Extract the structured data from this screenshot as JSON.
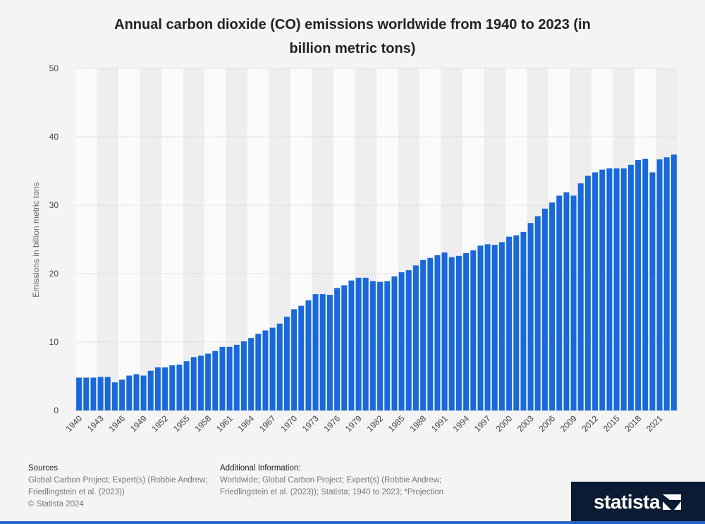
{
  "title_line1": "Annual carbon dioxide (CO) emissions worldwide from 1940 to 2023 (in",
  "title_line2": "billion metric tons)",
  "sources": {
    "heading": "Sources",
    "line1": "Global Carbon Project; Expert(s) (Robbie Andrew;",
    "line2": "Friedlingstein et al. (2023))",
    "line3": "© Statista 2024"
  },
  "additional_info": {
    "heading": "Additional Information:",
    "line1": "Worldwide; Global Carbon Project; Expert(s) (Robbie Andrew;",
    "line2": "Friedlingstein et al. (2023)); Statista; 1940 to 2023; *Projection"
  },
  "brand": {
    "name": "statista",
    "color": "#0b1b33"
  },
  "chart_data": {
    "type": "bar",
    "title": "Annual carbon dioxide (CO) emissions worldwide from 1940 to 2023 (in billion metric tons)",
    "xlabel": "",
    "ylabel": "Emissions in billion metric tons",
    "ylim": [
      0,
      50
    ],
    "yticks": [
      0,
      10,
      20,
      30,
      40,
      50
    ],
    "grid": true,
    "bar_color": "#1668e3",
    "x_tick_labels": [
      "1940",
      "1943",
      "1946",
      "1949",
      "1952",
      "1955",
      "1958",
      "1961",
      "1964",
      "1967",
      "1970",
      "1973",
      "1976",
      "1979",
      "1982",
      "1985",
      "1988",
      "1991",
      "1994",
      "1997",
      "2000",
      "2003",
      "2006",
      "2009",
      "2012",
      "2015",
      "2018",
      "2021"
    ],
    "categories": [
      "1940",
      "1941",
      "1942",
      "1943",
      "1944",
      "1945",
      "1946",
      "1947",
      "1948",
      "1949",
      "1950",
      "1951",
      "1952",
      "1953",
      "1954",
      "1955",
      "1956",
      "1957",
      "1958",
      "1959",
      "1960",
      "1961",
      "1962",
      "1963",
      "1964",
      "1965",
      "1966",
      "1967",
      "1968",
      "1969",
      "1970",
      "1971",
      "1972",
      "1973",
      "1974",
      "1975",
      "1976",
      "1977",
      "1978",
      "1979",
      "1980",
      "1981",
      "1982",
      "1983",
      "1984",
      "1985",
      "1986",
      "1987",
      "1988",
      "1989",
      "1990",
      "1991",
      "1992",
      "1993",
      "1994",
      "1995",
      "1996",
      "1997",
      "1998",
      "1999",
      "2000",
      "2001",
      "2002",
      "2003",
      "2004",
      "2005",
      "2006",
      "2007",
      "2008",
      "2009",
      "2010",
      "2011",
      "2012",
      "2013",
      "2014",
      "2015",
      "2016",
      "2017",
      "2018",
      "2019",
      "2020",
      "2021",
      "2022",
      "2023"
    ],
    "values": [
      4.8,
      4.8,
      4.8,
      4.9,
      4.9,
      4.1,
      4.5,
      5.1,
      5.3,
      5.1,
      5.8,
      6.3,
      6.3,
      6.6,
      6.7,
      7.2,
      7.8,
      8.0,
      8.3,
      8.7,
      9.3,
      9.3,
      9.6,
      10.1,
      10.6,
      11.2,
      11.7,
      12.1,
      12.7,
      13.7,
      14.8,
      15.3,
      16.1,
      17.0,
      17.0,
      16.9,
      17.9,
      18.3,
      19.0,
      19.4,
      19.4,
      18.9,
      18.8,
      18.9,
      19.6,
      20.2,
      20.5,
      21.2,
      22.0,
      22.3,
      22.7,
      23.1,
      22.4,
      22.6,
      23.0,
      23.4,
      24.1,
      24.3,
      24.2,
      24.6,
      25.4,
      25.6,
      26.1,
      27.4,
      28.4,
      29.5,
      30.4,
      31.4,
      31.9,
      31.4,
      33.2,
      34.3,
      34.8,
      35.2,
      35.4,
      35.4,
      35.4,
      35.9,
      36.6,
      36.8,
      34.8,
      36.7,
      37.0,
      37.4
    ]
  }
}
